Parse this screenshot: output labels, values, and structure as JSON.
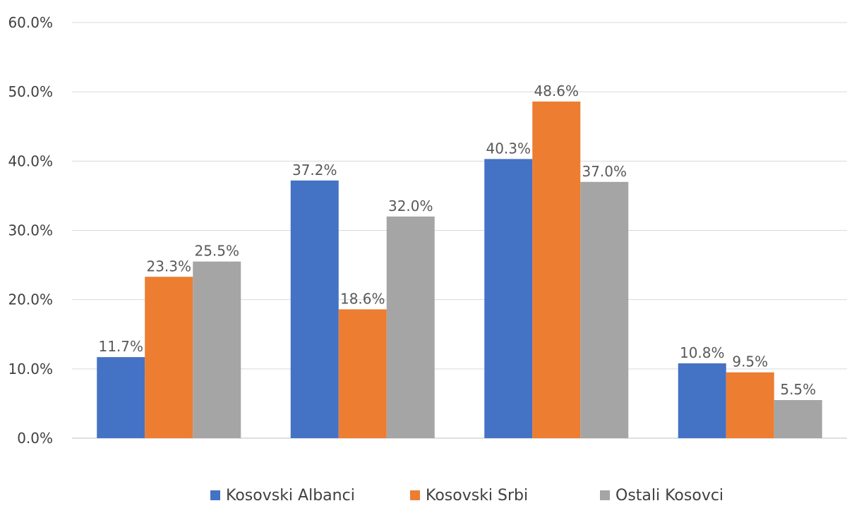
{
  "chart_data": {
    "type": "bar",
    "categories": [
      "",
      "",
      "",
      ""
    ],
    "series": [
      {
        "name": "Kosovski Albanci",
        "color": "#4472C4",
        "values": [
          11.7,
          37.2,
          40.3,
          10.8
        ],
        "labels": [
          "11.7%",
          "37.2%",
          "40.3%",
          "10.8%"
        ]
      },
      {
        "name": "Kosovski Srbi",
        "color": "#ED7D31",
        "values": [
          23.3,
          18.6,
          48.6,
          9.5
        ],
        "labels": [
          "23.3%",
          "18.6%",
          "48.6%",
          "9.5%"
        ]
      },
      {
        "name": "Ostali Kosovci",
        "color": "#A5A5A5",
        "values": [
          25.5,
          32.0,
          37.0,
          5.5
        ],
        "labels": [
          "25.5%",
          "32.0%",
          "37.0%",
          "5.5%"
        ]
      }
    ],
    "y_ticks": [
      "0.0%",
      "10.0%",
      "20.0%",
      "30.0%",
      "40.0%",
      "50.0%",
      "60.0%"
    ],
    "ylim": [
      0,
      60
    ],
    "grid": true,
    "legend_position": "bottom",
    "title": "",
    "xlabel": "",
    "ylabel": ""
  }
}
